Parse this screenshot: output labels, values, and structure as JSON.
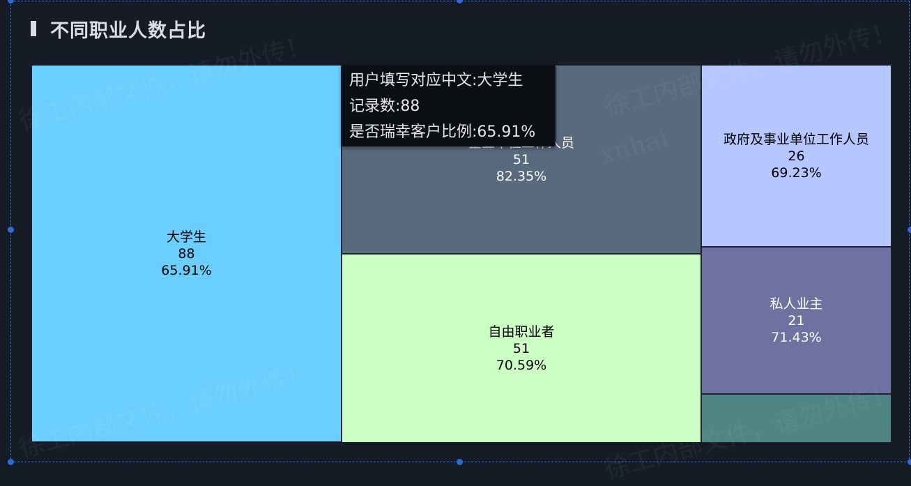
{
  "title": "不同职业人数占比",
  "watermark": "徐工内部文件，请勿外传！",
  "watermark_sub": "xuhai",
  "chart_data": {
    "type": "treemap",
    "title": "不同职业人数占比",
    "items": [
      {
        "name": "大学生",
        "value": 88,
        "ratio": "65.91%",
        "color": "#6acfff",
        "text_color": "#000000"
      },
      {
        "name": "企业单位工作人员",
        "value": 51,
        "ratio": "82.35%",
        "color": "#586a7e",
        "text_color": "#ffffff"
      },
      {
        "name": "自由职业者",
        "value": 51,
        "ratio": "70.59%",
        "color": "#ccffc4",
        "text_color": "#000000"
      },
      {
        "name": "政府及事业单位工作人员",
        "value": 26,
        "ratio": "69.23%",
        "color": "#b6c6ff",
        "text_color": "#000000"
      },
      {
        "name": "私人业主",
        "value": 21,
        "ratio": "71.43%",
        "color": "#6d72a0",
        "text_color": "#ffffff"
      },
      {
        "name": "",
        "value": null,
        "ratio": "",
        "color": "#4f8585",
        "text_color": "#ffffff"
      }
    ]
  },
  "tooltip": {
    "line1": "用户填写对应中文:大学生",
    "line2": "记录数:88",
    "line3": "是否瑞幸客户比例:65.91%"
  }
}
